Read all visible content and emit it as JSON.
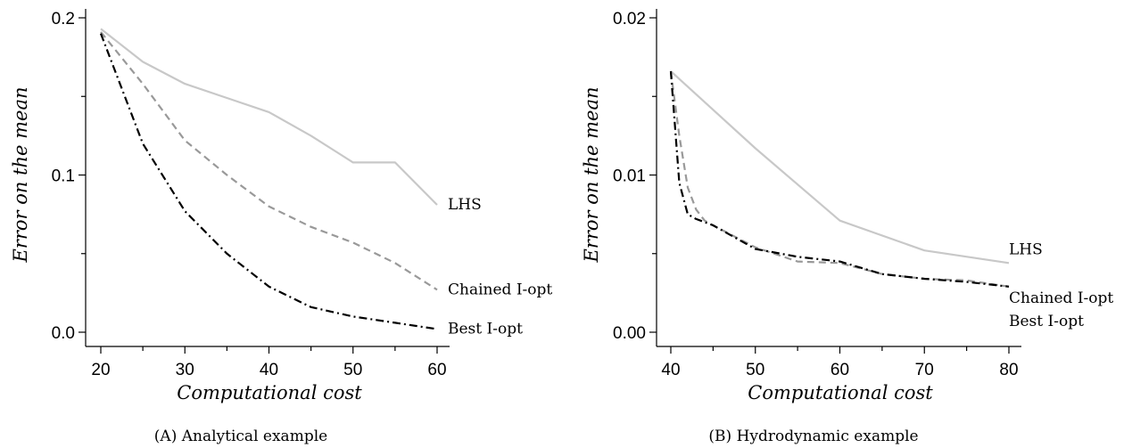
{
  "chart_data": [
    {
      "type": "line",
      "caption": "(A) Analytical example",
      "xlabel": "Computational cost",
      "ylabel": "Error on the mean",
      "xlim": [
        20,
        60
      ],
      "ylim": [
        0,
        0.2
      ],
      "xticks": [
        "20",
        "30",
        "40",
        "50",
        "60"
      ],
      "yticks": [
        "0.0",
        "0.1",
        "0.2"
      ],
      "grid": false,
      "legend": "inline-right",
      "series": [
        {
          "name": "LHS",
          "color": "#c8c8c8",
          "dash": "solid",
          "x": [
            20,
            25,
            30,
            35,
            40,
            45,
            50,
            55,
            60
          ],
          "y": [
            0.193,
            0.172,
            0.158,
            0.149,
            0.14,
            0.125,
            0.108,
            0.108,
            0.081
          ]
        },
        {
          "name": "Chained I-opt",
          "color": "#999999",
          "dash": "dashed",
          "x": [
            20,
            25,
            30,
            35,
            40,
            45,
            50,
            55,
            60
          ],
          "y": [
            0.191,
            0.158,
            0.122,
            0.1,
            0.08,
            0.067,
            0.057,
            0.044,
            0.027
          ]
        },
        {
          "name": "Best I-opt",
          "color": "#000000",
          "dash": "dashdot",
          "x": [
            20,
            25,
            30,
            35,
            40,
            45,
            50,
            55,
            60
          ],
          "y": [
            0.19,
            0.12,
            0.077,
            0.05,
            0.029,
            0.016,
            0.01,
            0.006,
            0.002
          ]
        }
      ]
    },
    {
      "type": "line",
      "caption": "(B) Hydrodynamic example",
      "xlabel": "Computational cost",
      "ylabel": "Error on the mean",
      "xlim": [
        40,
        80
      ],
      "ylim": [
        0,
        0.02
      ],
      "xticks": [
        "40",
        "50",
        "60",
        "70",
        "80"
      ],
      "yticks": [
        "0.00",
        "0.01",
        "0.02"
      ],
      "grid": false,
      "legend": "inline-right",
      "series": [
        {
          "name": "LHS",
          "color": "#c8c8c8",
          "dash": "solid",
          "x": [
            40,
            50,
            60,
            70,
            80
          ],
          "y": [
            0.0166,
            0.0117,
            0.0071,
            0.0052,
            0.0044
          ]
        },
        {
          "name": "Chained I-opt",
          "color": "#999999",
          "dash": "dashed",
          "x": [
            40,
            41,
            42,
            43,
            44,
            45,
            50,
            55,
            60,
            65,
            70,
            75,
            80
          ],
          "y": [
            0.0166,
            0.0125,
            0.0092,
            0.0078,
            0.0071,
            0.0068,
            0.0054,
            0.0045,
            0.0044,
            0.0037,
            0.0034,
            0.0033,
            0.0029
          ]
        },
        {
          "name": "Best I-opt",
          "color": "#000000",
          "dash": "dashdot",
          "x": [
            40,
            41,
            42,
            43,
            44,
            45,
            50,
            55,
            60,
            65,
            70,
            75,
            80
          ],
          "y": [
            0.0166,
            0.0095,
            0.0075,
            0.0072,
            0.007,
            0.0068,
            0.0053,
            0.0048,
            0.0045,
            0.0037,
            0.0034,
            0.0032,
            0.0029
          ]
        }
      ]
    }
  ]
}
